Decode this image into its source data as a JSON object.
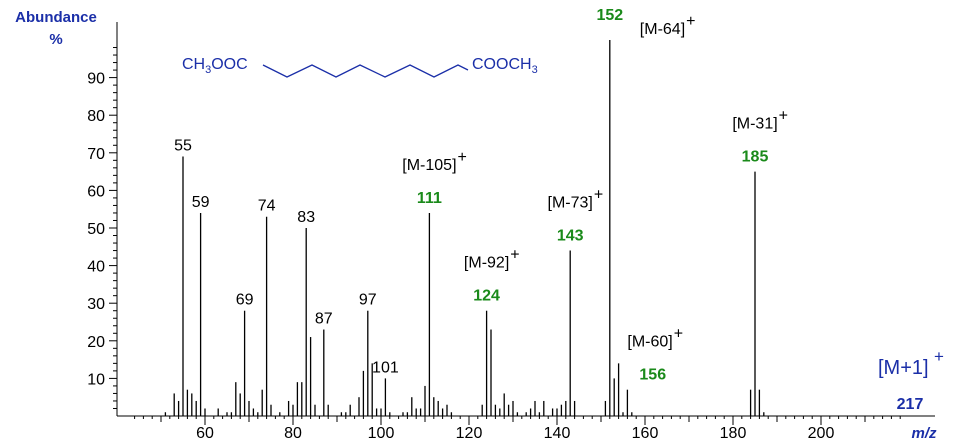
{
  "chart_data": {
    "type": "bar",
    "ylabel": "Abundance",
    "ylabel_unit": "%",
    "xlabel": "m/z",
    "xlim": [
      40,
      220
    ],
    "ylim": [
      0,
      100
    ],
    "x_ticks": [
      60,
      80,
      100,
      120,
      140,
      160,
      180,
      200
    ],
    "y_ticks": [
      10,
      20,
      30,
      40,
      50,
      60,
      70,
      80,
      90
    ],
    "colors": {
      "axis": "#000000",
      "label_blue": "#1b2fa8",
      "label_green": "#1a8a1a"
    },
    "peaks": [
      {
        "mz": 51,
        "ab": 1
      },
      {
        "mz": 53,
        "ab": 6
      },
      {
        "mz": 54,
        "ab": 4
      },
      {
        "mz": 55,
        "ab": 69
      },
      {
        "mz": 56,
        "ab": 7
      },
      {
        "mz": 57,
        "ab": 6
      },
      {
        "mz": 58,
        "ab": 4
      },
      {
        "mz": 59,
        "ab": 54
      },
      {
        "mz": 60,
        "ab": 2
      },
      {
        "mz": 63,
        "ab": 2
      },
      {
        "mz": 65,
        "ab": 1
      },
      {
        "mz": 66,
        "ab": 1
      },
      {
        "mz": 67,
        "ab": 9
      },
      {
        "mz": 68,
        "ab": 6
      },
      {
        "mz": 69,
        "ab": 28
      },
      {
        "mz": 70,
        "ab": 4
      },
      {
        "mz": 71,
        "ab": 2
      },
      {
        "mz": 72,
        "ab": 1
      },
      {
        "mz": 73,
        "ab": 7
      },
      {
        "mz": 74,
        "ab": 53
      },
      {
        "mz": 75,
        "ab": 3
      },
      {
        "mz": 77,
        "ab": 1
      },
      {
        "mz": 79,
        "ab": 4
      },
      {
        "mz": 80,
        "ab": 3
      },
      {
        "mz": 81,
        "ab": 9
      },
      {
        "mz": 82,
        "ab": 9
      },
      {
        "mz": 83,
        "ab": 50
      },
      {
        "mz": 84,
        "ab": 21
      },
      {
        "mz": 85,
        "ab": 3
      },
      {
        "mz": 87,
        "ab": 23
      },
      {
        "mz": 88,
        "ab": 3
      },
      {
        "mz": 91,
        "ab": 1
      },
      {
        "mz": 92,
        "ab": 1
      },
      {
        "mz": 93,
        "ab": 3
      },
      {
        "mz": 95,
        "ab": 5
      },
      {
        "mz": 96,
        "ab": 12
      },
      {
        "mz": 97,
        "ab": 28
      },
      {
        "mz": 98,
        "ab": 14
      },
      {
        "mz": 99,
        "ab": 2
      },
      {
        "mz": 100,
        "ab": 2
      },
      {
        "mz": 101,
        "ab": 10
      },
      {
        "mz": 102,
        "ab": 1
      },
      {
        "mz": 105,
        "ab": 1
      },
      {
        "mz": 106,
        "ab": 1
      },
      {
        "mz": 107,
        "ab": 5
      },
      {
        "mz": 108,
        "ab": 2
      },
      {
        "mz": 109,
        "ab": 2
      },
      {
        "mz": 110,
        "ab": 8
      },
      {
        "mz": 111,
        "ab": 54
      },
      {
        "mz": 112,
        "ab": 5
      },
      {
        "mz": 113,
        "ab": 4
      },
      {
        "mz": 114,
        "ab": 2
      },
      {
        "mz": 115,
        "ab": 3
      },
      {
        "mz": 116,
        "ab": 1
      },
      {
        "mz": 123,
        "ab": 3
      },
      {
        "mz": 124,
        "ab": 28
      },
      {
        "mz": 125,
        "ab": 23
      },
      {
        "mz": 126,
        "ab": 3
      },
      {
        "mz": 127,
        "ab": 2
      },
      {
        "mz": 128,
        "ab": 6
      },
      {
        "mz": 129,
        "ab": 3
      },
      {
        "mz": 130,
        "ab": 4
      },
      {
        "mz": 131,
        "ab": 1
      },
      {
        "mz": 133,
        "ab": 1
      },
      {
        "mz": 134,
        "ab": 2
      },
      {
        "mz": 135,
        "ab": 4
      },
      {
        "mz": 136,
        "ab": 1
      },
      {
        "mz": 137,
        "ab": 4
      },
      {
        "mz": 139,
        "ab": 2
      },
      {
        "mz": 140,
        "ab": 2
      },
      {
        "mz": 141,
        "ab": 3
      },
      {
        "mz": 142,
        "ab": 4
      },
      {
        "mz": 143,
        "ab": 44
      },
      {
        "mz": 144,
        "ab": 4
      },
      {
        "mz": 151,
        "ab": 4
      },
      {
        "mz": 152,
        "ab": 100
      },
      {
        "mz": 153,
        "ab": 10
      },
      {
        "mz": 154,
        "ab": 14
      },
      {
        "mz": 155,
        "ab": 1
      },
      {
        "mz": 156,
        "ab": 7
      },
      {
        "mz": 157,
        "ab": 1
      },
      {
        "mz": 184,
        "ab": 7
      },
      {
        "mz": 185,
        "ab": 65
      },
      {
        "mz": 186,
        "ab": 7
      },
      {
        "mz": 187,
        "ab": 1
      }
    ],
    "peak_labels": [
      {
        "mz": 55,
        "ab": 69,
        "text": "55"
      },
      {
        "mz": 59,
        "ab": 54,
        "text": "59"
      },
      {
        "mz": 69,
        "ab": 28,
        "text": "69"
      },
      {
        "mz": 74,
        "ab": 53,
        "text": "74"
      },
      {
        "mz": 83,
        "ab": 50,
        "text": "83"
      },
      {
        "mz": 87,
        "ab": 23,
        "text": "87"
      },
      {
        "mz": 97,
        "ab": 28,
        "text": "97"
      },
      {
        "mz": 101,
        "ab": 10,
        "text": "101"
      }
    ],
    "fragment_labels": [
      {
        "mz": 111,
        "ab": 54,
        "mass": "111",
        "ion": "[M-105]"
      },
      {
        "mz": 124,
        "ab": 28,
        "mass": "124",
        "ion": "[M-92]"
      },
      {
        "mz": 143,
        "ab": 44,
        "mass": "143",
        "ion": "[M-73]"
      },
      {
        "mz": 152,
        "ab": 100,
        "mass": "152",
        "ion": "[M-64]"
      },
      {
        "mz": 156,
        "ab": 7,
        "mass": "156",
        "ion": "[M-60]"
      },
      {
        "mz": 185,
        "ab": 65,
        "mass": "185",
        "ion": "[M-31]"
      }
    ],
    "ion_charge": "+",
    "molecular_ion": {
      "label": "[M+1]",
      "charge": "+",
      "mz": "217"
    },
    "structure": {
      "left": "CH3OOC",
      "right": "COOCH3"
    }
  }
}
